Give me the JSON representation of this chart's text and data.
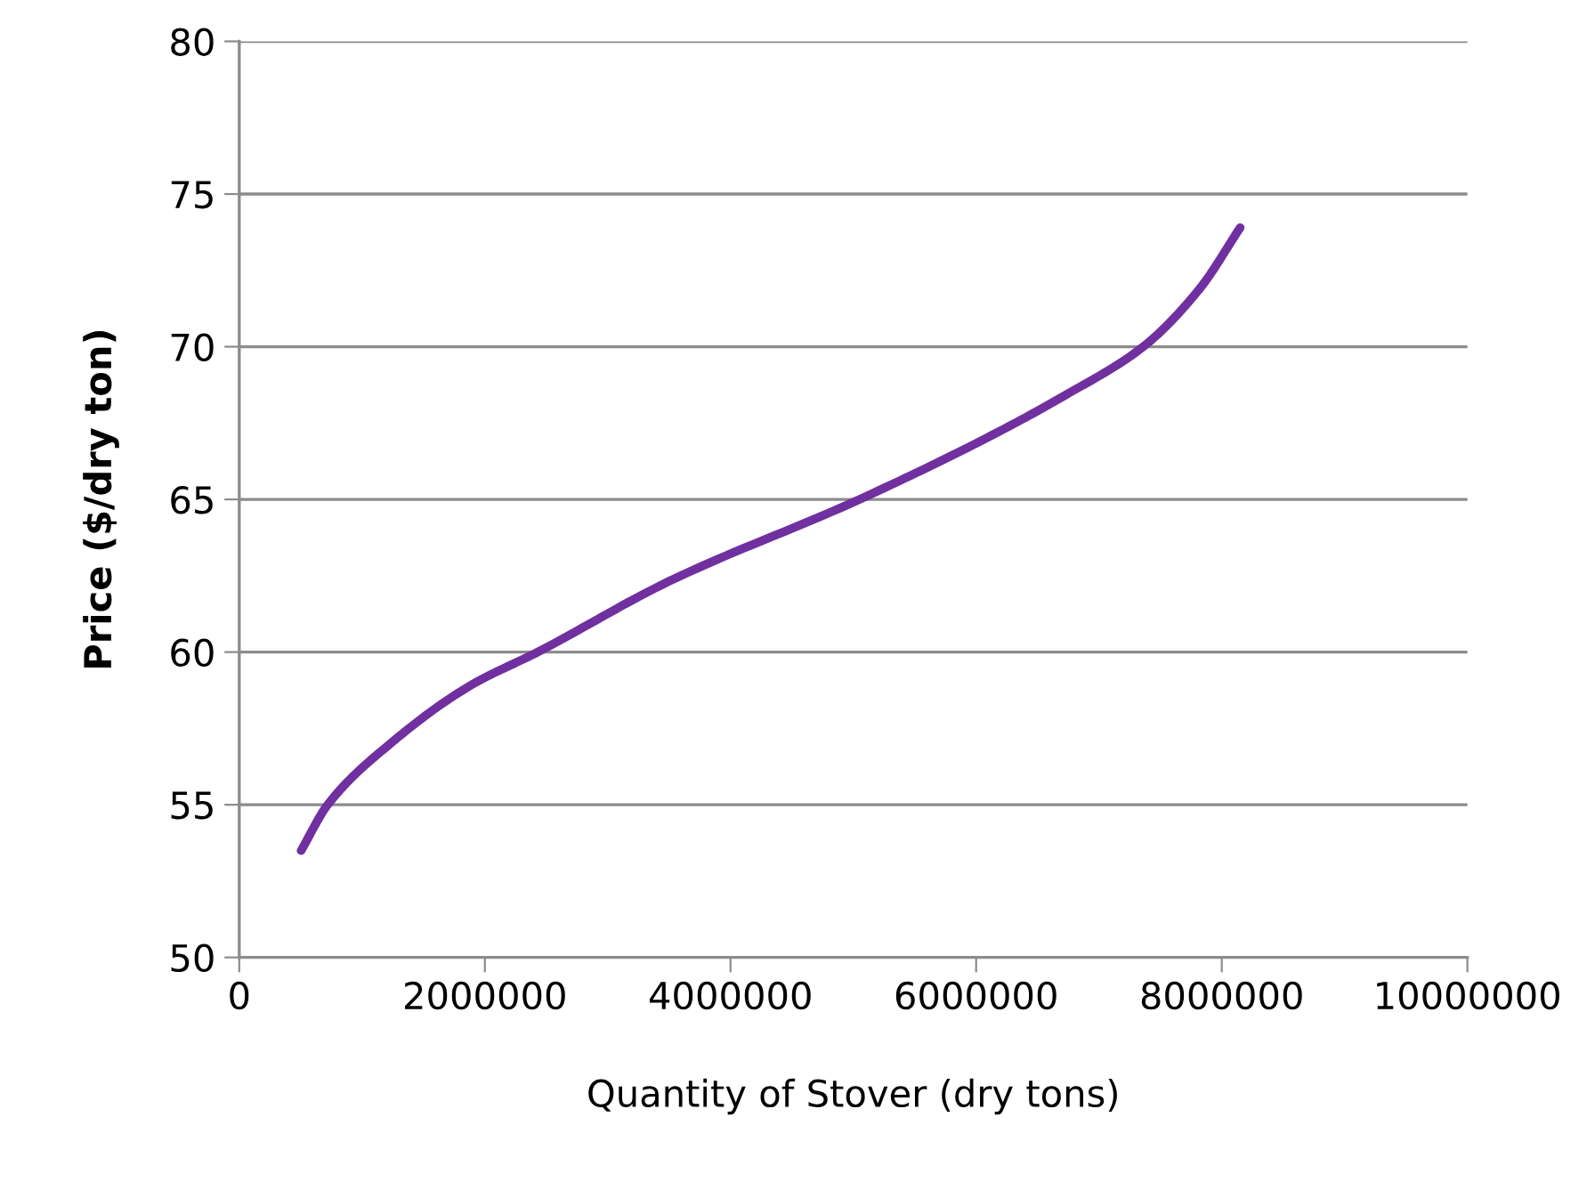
{
  "chart_data": {
    "type": "line",
    "xlabel": "Quantity of Stover (dry tons)",
    "ylabel": "Price ($/dry ton)",
    "series": [
      {
        "color": "#7030a0",
        "x": [
          504000,
          720000,
          1230000,
          1880000,
          2430000,
          3490000,
          5050000,
          6080000,
          6720000,
          7360000,
          7820000,
          8150000
        ],
        "values": [
          53.5,
          55.0,
          57.0,
          58.9,
          60.0,
          62.3,
          65.0,
          67.0,
          68.4,
          70.0,
          71.9,
          73.9
        ]
      }
    ],
    "xlim": [
      0,
      10000000
    ],
    "xticks": [
      0,
      2000000,
      4000000,
      6000000,
      8000000,
      10000000
    ],
    "ylim": [
      50,
      80
    ],
    "yticks": [
      50,
      55,
      60,
      65,
      70,
      75,
      80
    ],
    "grid": "y",
    "legend": false,
    "marker": "none",
    "line_style": "solid"
  }
}
